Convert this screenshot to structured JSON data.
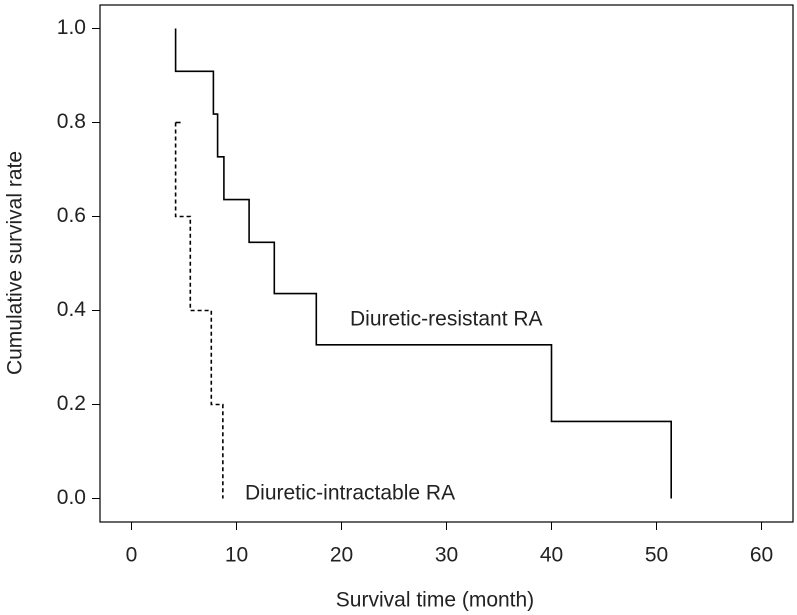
{
  "chart_data": {
    "type": "step",
    "xlabel": "Survival time (month)",
    "ylabel": "Cumulative survival rate",
    "xlim": [
      -3,
      63
    ],
    "ylim": [
      -0.05,
      1.05
    ],
    "xticks": [
      0,
      10,
      20,
      30,
      40,
      50,
      60
    ],
    "yticks": [
      {
        "value": 0,
        "label": "0.0"
      },
      0.2,
      0.4,
      0.6,
      0.8,
      {
        "value": 1,
        "label": "1.0"
      }
    ],
    "series": [
      {
        "name": "Diuretic-resistant RA",
        "color": "#000000",
        "dash": false,
        "x": [
          4.2,
          4.2,
          7.8,
          8.2,
          8.8,
          11.2,
          13.6,
          17.6,
          40,
          51.4
        ],
        "values": [
          1.0,
          0.909,
          0.818,
          0.727,
          0.636,
          0.545,
          0.436,
          0.327,
          0.164,
          0
        ]
      },
      {
        "name": "Diuretic-intractable RA",
        "color": "#000000",
        "dash": true,
        "x": [
          4.2,
          4.2,
          5.6,
          7.6,
          8.7
        ],
        "values": [
          0.8,
          0.6,
          0.4,
          0.2,
          0
        ]
      }
    ]
  }
}
